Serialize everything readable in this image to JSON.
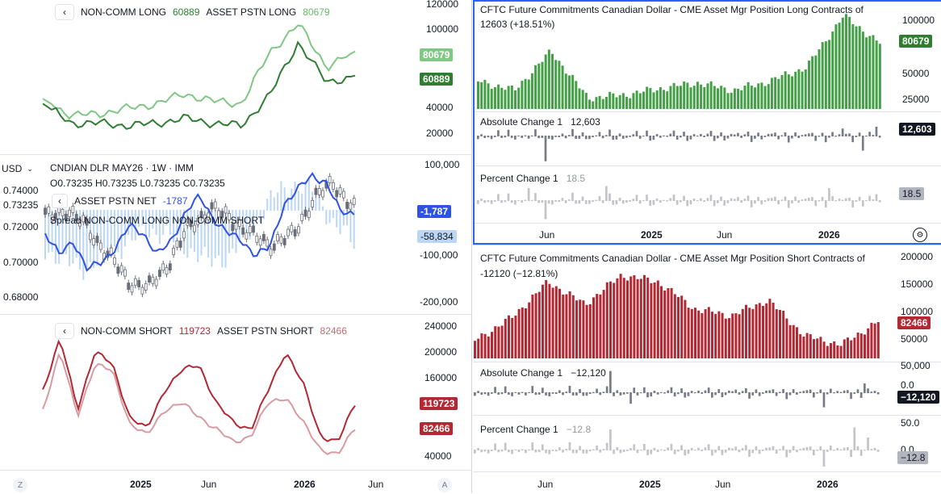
{
  "left": {
    "top_legend": {
      "series1_label": "NON-COMM LONG",
      "series1_value": "60889",
      "series2_label": "ASSET PSTN LONG",
      "series2_value": "80679"
    },
    "top_axis": [
      "120000",
      "100000",
      "80000",
      "60000",
      "40000",
      "20000"
    ],
    "top_tags": {
      "asset_long": "80679",
      "noncomm_long": "60889"
    },
    "currency_selector": "USD",
    "price_legend": {
      "symbol": "CNDIAN DLR MAY26",
      "interval": "1W",
      "exchange": "IMM",
      "ohlc": "O0.73235 H0.73235 L0.73235 C0.73235",
      "net_label": "ASSET PSTN NET",
      "net_value": "-1787",
      "spread_label": "Spread NON-COMM LONG NON-COMM SHORT"
    },
    "price_axis": [
      "0.74000",
      "0.73235",
      "0.72000",
      "0.70000",
      "0.68000"
    ],
    "net_axis": [
      "100,000",
      "-100,000",
      "-200,000"
    ],
    "net_tags": {
      "net": "-1,787",
      "spread": "-58,834"
    },
    "bottom_legend": {
      "series1_label": "NON-COMM SHORT",
      "series1_value": "119723",
      "series2_label": "ASSET PSTN SHORT",
      "series2_value": "82466"
    },
    "bottom_axis": [
      "240000",
      "200000",
      "160000",
      "120000",
      "80000",
      "40000"
    ],
    "bottom_tags": {
      "noncomm_short": "119723",
      "asset_short": "82466"
    },
    "time_axis": [
      "2025",
      "Jun",
      "2026",
      "Jun"
    ],
    "corner_left": "Z",
    "corner_right": "A"
  },
  "right_top": {
    "title": "CFTC Future Commitments Canadian Dollar - CME Asset Mgr Position Long Contracts of",
    "value": "12603 (+18.51%)",
    "axis": [
      "100000",
      "75000",
      "50000",
      "25000"
    ],
    "tag": "80679",
    "abs_label": "Absolute Change 1",
    "abs_value": "12,603",
    "abs_tag": "12,603",
    "pct_label": "Percent Change 1",
    "pct_value": "18.5",
    "pct_tag": "18.5",
    "time_axis": [
      "Jun",
      "2025",
      "Jun",
      "2026"
    ]
  },
  "right_bottom": {
    "title": "CFTC Future Commitments Canadian Dollar - CME Asset Mgr Position Short Contracts of",
    "value": "-12120 (−12.81%)",
    "axis": [
      "200000",
      "150000",
      "100000",
      "50000"
    ],
    "tag": "82466",
    "abs_label": "Absolute Change 1",
    "abs_value": "−12,120",
    "abs_axis": [
      "50,000",
      "0.0"
    ],
    "abs_tag": "−12,120",
    "pct_label": "Percent Change 1",
    "pct_value": "−12.8",
    "pct_axis": [
      "50.0",
      "0.0"
    ],
    "pct_tag": "−12.8",
    "time_axis": [
      "Jun",
      "2025",
      "Jun",
      "2026"
    ]
  },
  "colors": {
    "green_dark": "#2e7d32",
    "green_light": "#81c784",
    "red_dark": "#b22833",
    "red_light": "#d99aa0",
    "blue": "#2f52e0",
    "light_blue": "#bcd6f5",
    "bar_green": "#43a047",
    "bar_red": "#b22833",
    "bar_grey": "#787b86",
    "bar_lightgrey": "#c2c4c9"
  },
  "chart_data": [
    {
      "type": "line",
      "x": [
        "2024-09",
        "2024-11",
        "2025-01",
        "2025-03",
        "2025-05",
        "2025-07",
        "2025-09",
        "2025-11",
        "2026-01",
        "2026-02",
        "2026-03",
        "2026-04"
      ],
      "series": [
        {
          "name": "NON-COMM LONG",
          "values": [
            38000,
            22000,
            22000,
            20000,
            22000,
            26000,
            22000,
            20000,
            45000,
            88000,
            55000,
            60889
          ]
        },
        {
          "name": "ASSET PSTN LONG",
          "values": [
            42000,
            28000,
            30000,
            34000,
            38000,
            46000,
            40000,
            38000,
            80000,
            103000,
            68000,
            80679
          ]
        }
      ],
      "ylim": [
        0,
        120000
      ]
    },
    {
      "type": "bar",
      "categories": [
        "2024-01",
        "2024-04",
        "2024-06",
        "2024-09",
        "2025-01",
        "2025-04",
        "2025-07",
        "2025-10",
        "2025-12",
        "2026-01",
        "2026-02",
        "2026-03"
      ],
      "values": [
        40000,
        30000,
        72000,
        22000,
        25000,
        32000,
        38000,
        30000,
        40000,
        55000,
        110000,
        80679
      ],
      "title": "CFTC Future Commitments Canadian Dollar - CME Asset Mgr Position Long Contracts of",
      "ylim": [
        10000,
        112000
      ]
    },
    {
      "type": "bar",
      "categories": [
        "2024-01",
        "2024-04",
        "2024-06",
        "2024-09",
        "2025-01",
        "2025-04",
        "2025-07",
        "2025-10",
        "2025-12",
        "2026-01",
        "2026-02",
        "2026-03"
      ],
      "values": [
        40000,
        90000,
        170000,
        120000,
        185000,
        170000,
        110000,
        95000,
        130000,
        50000,
        30000,
        82466
      ],
      "title": "CFTC Future Commitments Canadian Dollar - CME Asset Mgr Position Short Contracts of",
      "ylim": [
        0,
        215000
      ]
    }
  ]
}
